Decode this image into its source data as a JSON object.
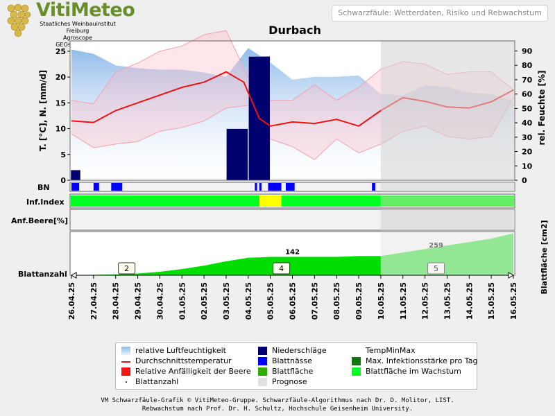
{
  "header": {
    "logo_text": "VitiMeteo",
    "logo_lines": [
      "Staatliches Weinbauinstitut Freiburg",
      "Agroscope",
      "GEOsens GmbH"
    ],
    "badge": "Schwarzfäule: Wetterdaten, Risiko und Rebwachstum"
  },
  "chart_data": {
    "type": "line",
    "title": "Durbach",
    "dates": [
      "26.04.25",
      "27.04.25",
      "28.04.25",
      "29.04.25",
      "30.04.25",
      "01.05.25",
      "02.05.25",
      "03.05.25",
      "04.05.25",
      "05.05.25",
      "06.05.25",
      "07.05.25",
      "08.05.25",
      "09.05.25",
      "10.05.25",
      "11.05.25",
      "12.05.25",
      "13.05.25",
      "14.05.25",
      "15.05.25",
      "16.05.25"
    ],
    "forecast_start": "10.05.25",
    "y_left": {
      "label": "T. [°C], N. [mm/d]",
      "ticks": [
        0,
        5,
        10,
        15,
        20,
        25
      ],
      "range": [
        0,
        27
      ]
    },
    "y_right": {
      "label": "rel. Feuchte [%]",
      "ticks": [
        0,
        10,
        20,
        30,
        40,
        50,
        60,
        70,
        80,
        90
      ],
      "range": [
        0,
        97
      ]
    },
    "y_right_bottom_label": "Blattfläche [cm2]",
    "series": [
      {
        "name": "Durchschnittstemperatur",
        "color": "#ee1111",
        "x": [
          0,
          1,
          2,
          3,
          4,
          5,
          6,
          7,
          7.8,
          8.5,
          9,
          10,
          11,
          12,
          13,
          14,
          15,
          16,
          17,
          18,
          19,
          20
        ],
        "values": [
          11.5,
          11.2,
          13.5,
          15,
          16.5,
          18,
          19,
          21,
          19,
          12,
          10.5,
          11.3,
          11,
          11.8,
          10.5,
          13.5,
          16,
          15.3,
          14.2,
          14,
          15.2,
          17.5
        ]
      },
      {
        "name": "TempMax",
        "x": [
          0,
          1,
          2,
          3,
          4,
          5,
          6,
          7,
          8,
          9,
          10,
          11,
          12,
          13,
          14,
          15,
          16,
          17,
          18,
          19,
          20
        ],
        "values": [
          15.5,
          14.8,
          21,
          22.7,
          25,
          26,
          28.2,
          29,
          20,
          15.5,
          15.5,
          18.5,
          15.5,
          18,
          21.5,
          23,
          22.5,
          20.5,
          21,
          21,
          17.5
        ]
      },
      {
        "name": "TempMin",
        "x": [
          0,
          1,
          2,
          3,
          4,
          5,
          6,
          7,
          8,
          9,
          10,
          11,
          12,
          13,
          14,
          15,
          16,
          17,
          18,
          19,
          20
        ],
        "values": [
          9,
          6.3,
          7,
          7.5,
          9.5,
          10.2,
          11.5,
          14,
          14.5,
          8,
          6.5,
          4,
          8,
          5.3,
          7,
          9.5,
          10.5,
          8.5,
          8,
          8.5,
          16
        ]
      },
      {
        "name": "relative Luftfeuchtigkeit",
        "x": [
          0,
          1,
          2,
          3,
          4,
          5,
          6,
          7,
          8,
          9,
          10,
          11,
          12,
          13,
          14,
          15,
          16,
          17,
          18,
          19,
          20
        ],
        "values": [
          91,
          88,
          80,
          78,
          77,
          77,
          75,
          72,
          92,
          82,
          70,
          72,
          72,
          73,
          60,
          59,
          66,
          65,
          61,
          60,
          55
        ]
      }
    ],
    "precipitation": [
      {
        "x": 0,
        "value": 2
      },
      {
        "x": 7.5,
        "value": 10
      },
      {
        "x": 8.5,
        "value": 24
      }
    ],
    "rows": {
      "bn_label": "BN",
      "infindex_label": "Inf.Index",
      "anf_label": "Anf.Beere[%]",
      "blatt_label": "Blattanzahl",
      "bn_segments": [
        [
          0,
          0.35
        ],
        [
          1,
          1.25
        ],
        [
          1.8,
          2.3
        ],
        [
          8.3,
          8.4
        ],
        [
          8.5,
          8.6
        ],
        [
          8.9,
          9.5
        ],
        [
          9.7,
          10.1
        ],
        [
          13.6,
          13.75
        ]
      ],
      "infindex_yellow": [
        8.5,
        9.5
      ]
    },
    "leaves": {
      "area_label": "142",
      "forecast_area_label": "259",
      "counts": [
        {
          "x": 2.5,
          "label": "2"
        },
        {
          "x": 9.5,
          "label": "4"
        },
        {
          "x": 16.5,
          "label": "5"
        }
      ],
      "area_values": [
        0,
        1,
        2,
        4,
        8,
        14,
        22,
        32,
        40,
        42,
        42,
        42,
        42,
        44,
        44,
        52,
        60,
        68,
        76,
        84,
        96
      ]
    }
  },
  "legend": [
    {
      "label": "relative Luftfeuchtigkeit",
      "color": "#a9cbee",
      "kind": "box"
    },
    {
      "label": "Niederschläge",
      "color": "#00006e",
      "kind": "box"
    },
    {
      "label": "TempMinMax",
      "color": "#ffd8e0",
      "kind": "none"
    },
    {
      "label": "Durchschnittstemperatur",
      "color": "#ee1111",
      "kind": "line"
    },
    {
      "label": "Blattnässe",
      "color": "#0000ff",
      "kind": "box"
    },
    {
      "label": "Max. Infektionsstärke pro Tag",
      "color": "#117711",
      "kind": "box"
    },
    {
      "label": "Relative Anfälligkeit der Beere",
      "color": "#ff1111",
      "kind": "box"
    },
    {
      "label": "Blattfläche",
      "color": "#33aa00",
      "kind": "box"
    },
    {
      "label": "Blattfläche im Wachstum",
      "color": "#00ff22",
      "kind": "box"
    },
    {
      "label": "Blattanzahl",
      "color": "#444444",
      "kind": "dot"
    },
    {
      "label": "Prognose",
      "color": "#e0e0e0",
      "kind": "box"
    }
  ],
  "footer": {
    "line1": "VM Schwarzfäule-Grafik © VitiMeteo-Gruppe. Schwarzfäule-Algorithmus nach Dr. D. Molitor, LIST.",
    "line2": "Rebwachstum nach Prof. Dr. H. Schultz, Hochschule Geisenheim University."
  }
}
